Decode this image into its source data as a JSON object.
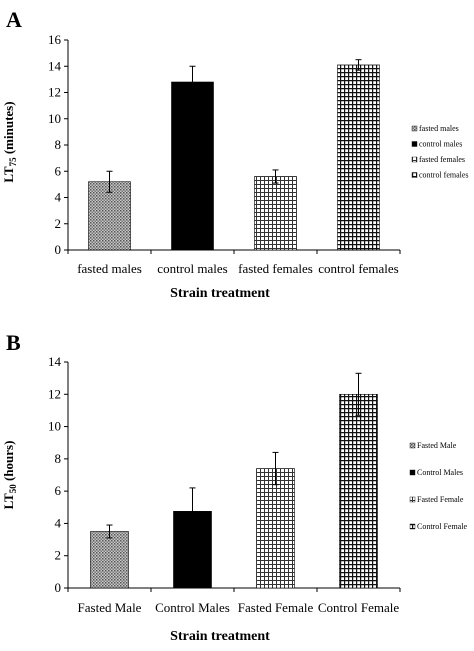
{
  "chart_data": [
    {
      "panel_label": "A",
      "type": "bar",
      "categories": [
        "fasted males",
        "control males",
        "fasted females",
        "control females"
      ],
      "values": [
        5.2,
        12.8,
        5.6,
        14.1
      ],
      "errors": [
        0.8,
        1.2,
        0.5,
        0.4
      ],
      "ylim": [
        0,
        16
      ],
      "yticks": [
        0,
        2,
        4,
        6,
        8,
        10,
        12,
        14,
        16
      ],
      "ylabel_main": "LT",
      "ylabel_sub": "75",
      "ylabel_unit": "(minutes)",
      "xlabel": "Strain treatment",
      "legend": [
        "fasted males",
        "control males",
        "fasted females",
        "control females"
      ],
      "legend_position": "right",
      "grid": false,
      "patterns": [
        "dots",
        "solid-black",
        "grid-fine",
        "grid-coarse"
      ]
    },
    {
      "panel_label": "B",
      "type": "bar",
      "categories": [
        "Fasted Male",
        "Control Males",
        "Fasted Female",
        "Control Female"
      ],
      "values": [
        3.5,
        4.75,
        7.4,
        12.0
      ],
      "errors": [
        0.4,
        1.45,
        1.0,
        1.3
      ],
      "ylim": [
        0,
        14
      ],
      "yticks": [
        0,
        2,
        4,
        6,
        8,
        10,
        12,
        14
      ],
      "ylabel_main": "LT",
      "ylabel_sub": "50",
      "ylabel_unit": "(hours)",
      "xlabel": "Strain treatment",
      "legend": [
        "Fasted Male",
        "Control Males",
        "Fasted Female",
        "Control Female"
      ],
      "legend_position": "right",
      "grid": false,
      "patterns": [
        "dots",
        "solid-black",
        "grid-fine",
        "grid-coarse"
      ]
    }
  ]
}
